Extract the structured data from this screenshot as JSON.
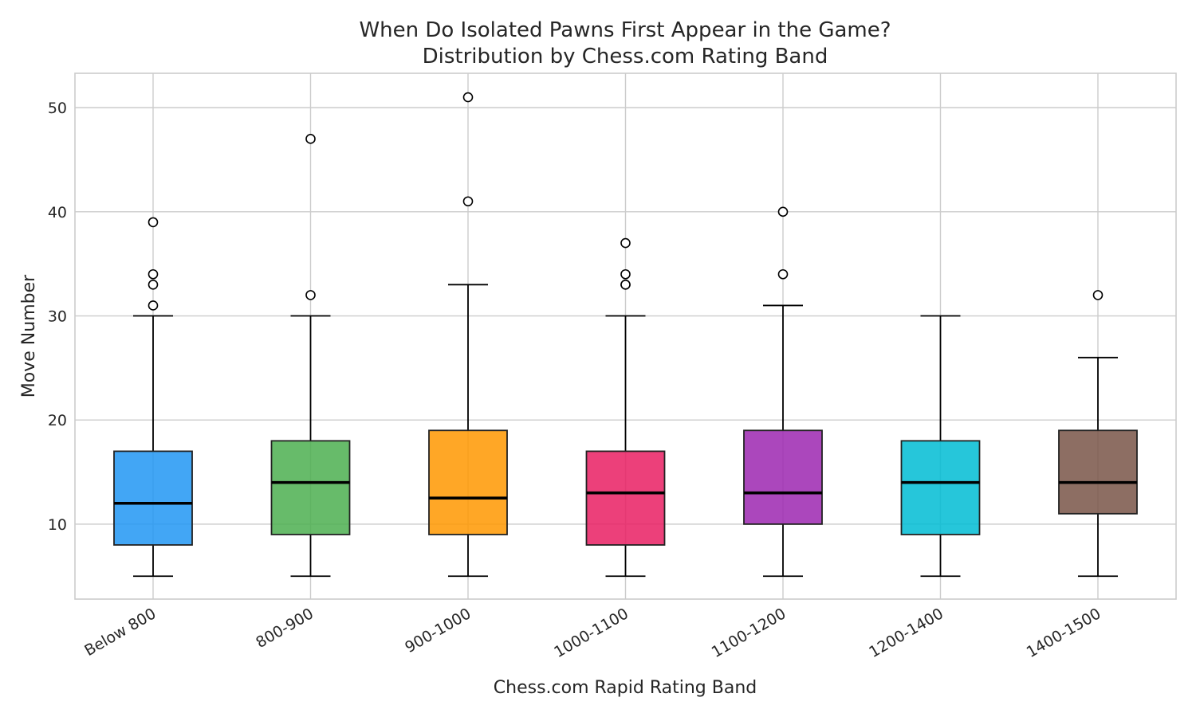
{
  "chart_data": {
    "type": "box",
    "title": "When Do Isolated Pawns First Appear in the Game?",
    "subtitle": "Distribution by Chess.com Rating Band",
    "xlabel": "Chess.com Rapid Rating Band",
    "ylabel": "Move Number",
    "ylim": [
      2.8,
      53.3
    ],
    "yticks": [
      10,
      20,
      30,
      40,
      50
    ],
    "grid": true,
    "categories": [
      "Below 800",
      "800-900",
      "900-1000",
      "1000-1100",
      "1100-1200",
      "1200-1400",
      "1400-1500"
    ],
    "series": [
      {
        "whisker_low": 5,
        "q1": 8,
        "median": 12,
        "q3": 17,
        "whisker_high": 30,
        "outliers": [
          31,
          33,
          34,
          39
        ],
        "color": "#2196F3"
      },
      {
        "whisker_low": 5,
        "q1": 9,
        "median": 14,
        "q3": 18,
        "whisker_high": 30,
        "outliers": [
          32,
          47
        ],
        "color": "#4CAF50"
      },
      {
        "whisker_low": 5,
        "q1": 9,
        "median": 12.5,
        "q3": 19,
        "whisker_high": 33,
        "outliers": [
          41,
          51
        ],
        "color": "#FF9800"
      },
      {
        "whisker_low": 5,
        "q1": 8,
        "median": 13,
        "q3": 17,
        "whisker_high": 30,
        "outliers": [
          33,
          33,
          34,
          37
        ],
        "color": "#E91E63"
      },
      {
        "whisker_low": 5,
        "q1": 10,
        "median": 13,
        "q3": 19,
        "whisker_high": 31,
        "outliers": [
          34,
          40
        ],
        "color": "#9C27B0"
      },
      {
        "whisker_low": 5,
        "q1": 9,
        "median": 14,
        "q3": 18,
        "whisker_high": 30,
        "outliers": [],
        "color": "#00BCD4"
      },
      {
        "whisker_low": 5,
        "q1": 11,
        "median": 14,
        "q3": 19,
        "whisker_high": 26,
        "outliers": [
          32
        ],
        "color": "#795548"
      }
    ]
  }
}
